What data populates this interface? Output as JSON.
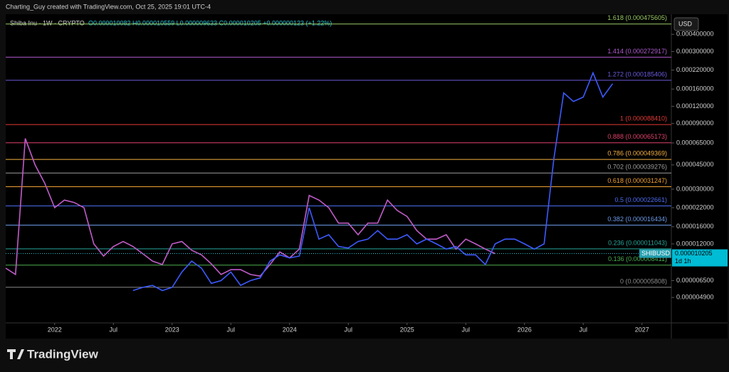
{
  "header": {
    "attribution": "Charting_Guy created with TradingView.com, Oct 25, 2025 19:01 UTC-4",
    "symbol": "Shiba Inu · 1W · CRYPTO",
    "ohlc": "O0.000010082 H0.000010559 L0.000009633 C0.000010205 +0.000000123 (+1.22%)"
  },
  "chart_data": {
    "type": "line",
    "log_scale": true,
    "currency": "USD",
    "xlim": [
      "2021-08",
      "2027-04"
    ],
    "ylim": [
      3.2e-06,
      0.00056
    ],
    "xticks": [
      {
        "value": "2022-01",
        "label": "2022"
      },
      {
        "value": "2022-07",
        "label": "Jul"
      },
      {
        "value": "2023-01",
        "label": "2023"
      },
      {
        "value": "2023-07",
        "label": "Jul"
      },
      {
        "value": "2024-01",
        "label": "2024"
      },
      {
        "value": "2024-07",
        "label": "Jul"
      },
      {
        "value": "2025-01",
        "label": "2025"
      },
      {
        "value": "2025-07",
        "label": "Jul"
      },
      {
        "value": "2026-01",
        "label": "2026"
      },
      {
        "value": "2026-07",
        "label": "Jul"
      },
      {
        "value": "2027-01",
        "label": "2027"
      }
    ],
    "yticks": [
      {
        "value": 0.0004,
        "label": "0.000400000"
      },
      {
        "value": 0.0003,
        "label": "0.000300000"
      },
      {
        "value": 0.00022,
        "label": "0.000220000"
      },
      {
        "value": 0.00016,
        "label": "0.000160000"
      },
      {
        "value": 0.00012,
        "label": "0.000120000"
      },
      {
        "value": 9e-05,
        "label": "0.000090000"
      },
      {
        "value": 6.5e-05,
        "label": "0.000065000"
      },
      {
        "value": 4.5e-05,
        "label": "0.000045000"
      },
      {
        "value": 3e-05,
        "label": "0.000030000"
      },
      {
        "value": 2.2e-05,
        "label": "0.000022000"
      },
      {
        "value": 1.6e-05,
        "label": "0.000016000"
      },
      {
        "value": 1.2e-05,
        "label": "0.000012000"
      },
      {
        "value": 6.5e-06,
        "label": "0.000006500"
      },
      {
        "value": 4.9e-06,
        "label": "0.000004900"
      }
    ],
    "series": [
      {
        "color": "#c05cc8",
        "x": [
          "2021-08",
          "2021-09",
          "2021-10",
          "2021-11",
          "2021-12",
          "2022-01",
          "2022-02",
          "2022-03",
          "2022-04",
          "2022-05",
          "2022-06",
          "2022-07",
          "2022-08",
          "2022-09",
          "2022-10",
          "2022-11",
          "2022-12",
          "2023-01",
          "2023-02",
          "2023-03",
          "2023-04",
          "2023-05",
          "2023-06",
          "2023-07",
          "2023-08",
          "2023-09",
          "2023-10",
          "2023-11",
          "2023-12",
          "2024-01",
          "2024-02",
          "2024-03",
          "2024-04",
          "2024-05",
          "2024-06",
          "2024-07",
          "2024-08",
          "2024-09",
          "2024-10",
          "2024-11",
          "2024-12",
          "2025-01",
          "2025-02",
          "2025-03",
          "2025-04",
          "2025-05",
          "2025-06",
          "2025-07",
          "2025-08",
          "2025-09",
          "2025-10"
        ],
        "values": [
          8e-06,
          7.2e-06,
          7e-05,
          4.5e-05,
          3.3e-05,
          2.2e-05,
          2.5e-05,
          2.4e-05,
          2.2e-05,
          1.2e-05,
          9.8e-06,
          1.15e-05,
          1.25e-05,
          1.15e-05,
          1.02e-05,
          9e-06,
          8.5e-06,
          1.2e-05,
          1.25e-05,
          1.08e-05,
          1e-05,
          8.6e-06,
          7.2e-06,
          7.8e-06,
          7.8e-06,
          7.2e-06,
          7e-06,
          8.5e-06,
          1.05e-05,
          9.5e-06,
          1.1e-05,
          2.7e-05,
          2.5e-05,
          2.2e-05,
          1.7e-05,
          1.7e-05,
          1.4e-05,
          1.7e-05,
          1.7e-05,
          2.5e-05,
          2.1e-05,
          1.9e-05,
          1.5e-05,
          1.3e-05,
          1.3e-05,
          1.4e-05,
          1.1e-05,
          1.3e-05,
          1.2e-05,
          1.1e-05,
          1.02e-05
        ]
      },
      {
        "color": "#3d5afe",
        "x": [
          "2022-09",
          "2022-10",
          "2022-11",
          "2022-12",
          "2023-01",
          "2023-02",
          "2023-03",
          "2023-04",
          "2023-05",
          "2023-06",
          "2023-07",
          "2023-08",
          "2023-09",
          "2023-10",
          "2023-11",
          "2023-12",
          "2024-01",
          "2024-02",
          "2024-03",
          "2024-04",
          "2024-05",
          "2024-06",
          "2024-07",
          "2024-08",
          "2024-09",
          "2024-10",
          "2024-11",
          "2024-12",
          "2025-01",
          "2025-02",
          "2025-03",
          "2025-04",
          "2025-05",
          "2025-06",
          "2025-07",
          "2025-08",
          "2025-09",
          "2025-10",
          "2025-11",
          "2025-12",
          "2026-01",
          "2026-02",
          "2026-03",
          "2026-04",
          "2026-05",
          "2026-06",
          "2026-07",
          "2026-08",
          "2026-09",
          "2026-10"
        ],
        "values": [
          5.5e-06,
          5.8e-06,
          6e-06,
          5.5e-06,
          5.8e-06,
          7.5e-06,
          9e-06,
          8e-06,
          6.2e-06,
          6.5e-06,
          7.5e-06,
          6e-06,
          6.5e-06,
          6.8e-06,
          9e-06,
          1e-05,
          9.5e-06,
          9.8e-06,
          2.2e-05,
          1.3e-05,
          1.4e-05,
          1.15e-05,
          1.12e-05,
          1.25e-05,
          1.3e-05,
          1.5e-05,
          1.3e-05,
          1.3e-05,
          1.4e-05,
          1.2e-05,
          1.3e-05,
          1.2e-05,
          1.1e-05,
          1.15e-05,
          1e-05,
          1e-05,
          8.5e-06,
          1.2e-05,
          1.3e-05,
          1.3e-05,
          1.2e-05,
          1.1e-05,
          1.2e-05,
          5e-05,
          0.00015,
          0.00013,
          0.00014,
          0.00021,
          0.00014,
          0.000175
        ]
      }
    ],
    "fib_levels": [
      {
        "label": "1.618 (0.000475605)",
        "value": 0.000475605,
        "color": "#9ccc65"
      },
      {
        "label": "1.414 (0.000272917)",
        "value": 0.000272917,
        "color": "#b05ad0"
      },
      {
        "label": "1.272 (0.000185406)",
        "value": 0.000185406,
        "color": "#6a5ae0"
      },
      {
        "label": "1 (0.000088410)",
        "value": 8.841e-05,
        "color": "#e53935"
      },
      {
        "label": "0.888 (0.000065173)",
        "value": 6.5173e-05,
        "color": "#e0406a"
      },
      {
        "label": "0.786 (0.000049369)",
        "value": 4.9369e-05,
        "color": "#f5b041"
      },
      {
        "label": "0.702 (0.000039276)",
        "value": 3.9276e-05,
        "color": "#9e9e9e"
      },
      {
        "label": "0.618 (0.000031247)",
        "value": 3.1247e-05,
        "color": "#f0a030"
      },
      {
        "label": "0.5 (0.000022661)",
        "value": 2.2661e-05,
        "color": "#4a6cf0"
      },
      {
        "label": "0.382 (0.000016434)",
        "value": 1.6434e-05,
        "color": "#6b9be8"
      },
      {
        "label": "0.236 (0.000011043)",
        "value": 1.1043e-05,
        "color": "#26a69a"
      },
      {
        "label": "0.136 (0.000008411)",
        "value": 8.411e-06,
        "color": "#4caf50"
      },
      {
        "label": "0 (0.000005808)",
        "value": 5.808e-06,
        "color": "#8a8a8a"
      }
    ],
    "price_tag": {
      "symbol": "SHIBUSD",
      "price": 1.0205e-05,
      "countdown": "1d 1h"
    }
  },
  "footer": {
    "logo": "TradingView"
  }
}
